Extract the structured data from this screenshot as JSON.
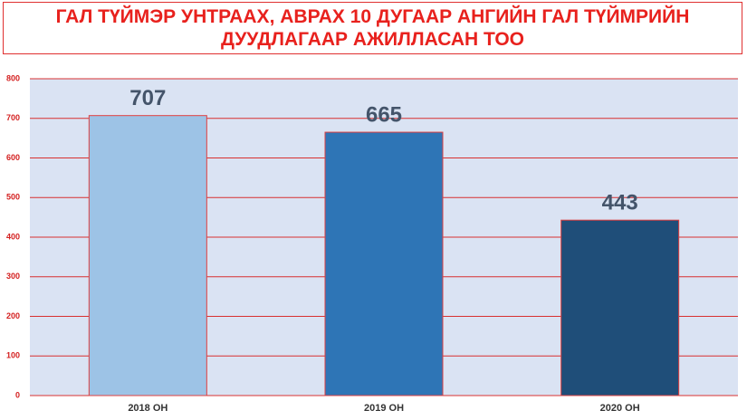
{
  "chart_data": {
    "type": "bar",
    "title": "ГАЛ ТҮЙМЭР УНТРААХ, АВРАХ 10 ДУГААР АНГИЙН ГАЛ ТҮЙМРИЙН ДУУДЛАГААР АЖИЛЛАСАН ТОО",
    "categories": [
      "2018 ОН",
      "2019 ОН",
      "2020 ОН"
    ],
    "values": [
      707,
      665,
      443
    ],
    "colors": [
      "#9dc3e6",
      "#2e75b6",
      "#1f4e79"
    ],
    "ylim": [
      0,
      800
    ],
    "yticks": [
      0,
      100,
      200,
      300,
      400,
      500,
      600,
      700,
      800
    ],
    "grid": true
  }
}
